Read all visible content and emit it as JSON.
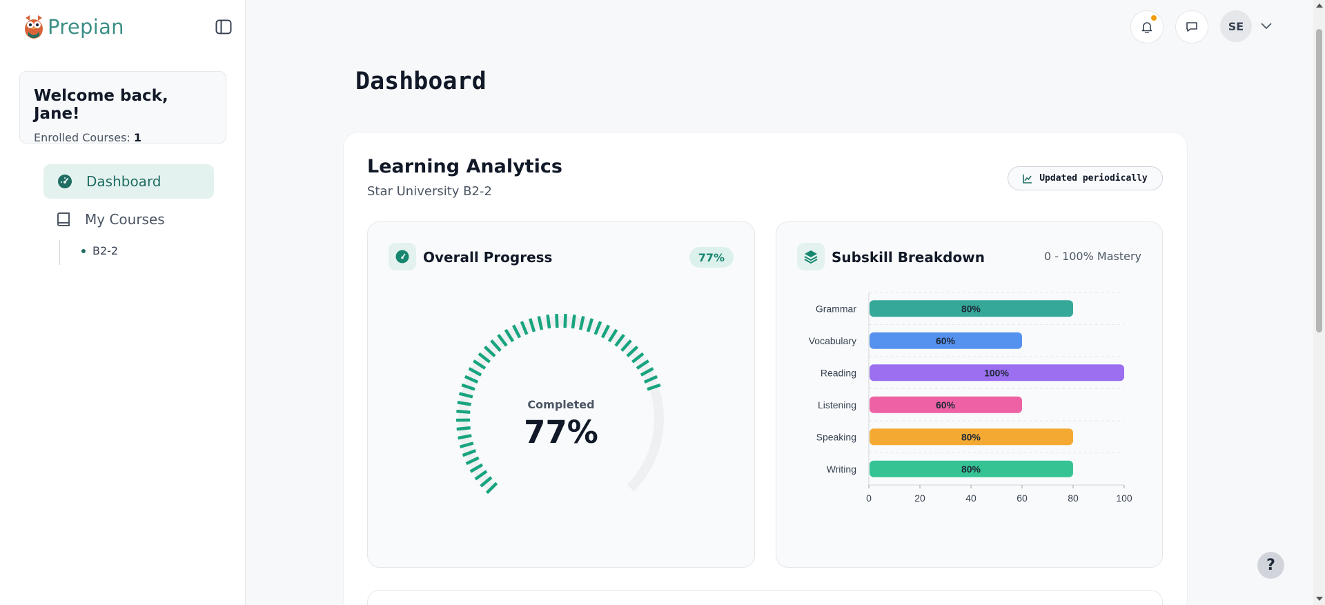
{
  "brand": {
    "name": "Prepian",
    "logo_icon": "owl-logo-icon"
  },
  "sidebar": {
    "welcome_title": "Welcome back, Jane!",
    "enrolled_label": "Enrolled Courses:",
    "enrolled_count": "1",
    "nav": [
      {
        "label": "Dashboard",
        "icon": "dashboard-gauge-icon",
        "active": true
      },
      {
        "label": "My Courses",
        "icon": "book-icon",
        "active": false
      }
    ],
    "sub_items": [
      {
        "label": "B2-2"
      }
    ]
  },
  "topbar": {
    "avatar_initials": "SE",
    "icons": [
      "bell-icon",
      "message-icon",
      "chevron-down-icon"
    ]
  },
  "page_title": "Dashboard",
  "analytics": {
    "title": "Learning Analytics",
    "subtitle": "Star University B2-2",
    "updated_label": "Updated periodically"
  },
  "overall_progress": {
    "title": "Overall Progress",
    "badge": "77%",
    "completed_label": "Completed",
    "value_label": "77%",
    "value": 77,
    "color": "#17a47f"
  },
  "subskills": {
    "title": "Subskill Breakdown",
    "mastery_label": "0 - 100% Mastery"
  },
  "chart_data": {
    "type": "bar",
    "orientation": "horizontal",
    "categories": [
      "Grammar",
      "Vocabulary",
      "Reading",
      "Listening",
      "Speaking",
      "Writing"
    ],
    "values": [
      80,
      60,
      100,
      60,
      80,
      80
    ],
    "data_labels": [
      "80%",
      "60%",
      "100%",
      "60%",
      "80%",
      "80%"
    ],
    "colors": [
      "#35a89a",
      "#5591ee",
      "#9b6ff0",
      "#ee61a4",
      "#f4aa32",
      "#36c394"
    ],
    "xlim": [
      0,
      100
    ],
    "xticks": [
      "0",
      "20",
      "40",
      "60",
      "80",
      "100"
    ],
    "grid": true
  },
  "help_label": "?"
}
